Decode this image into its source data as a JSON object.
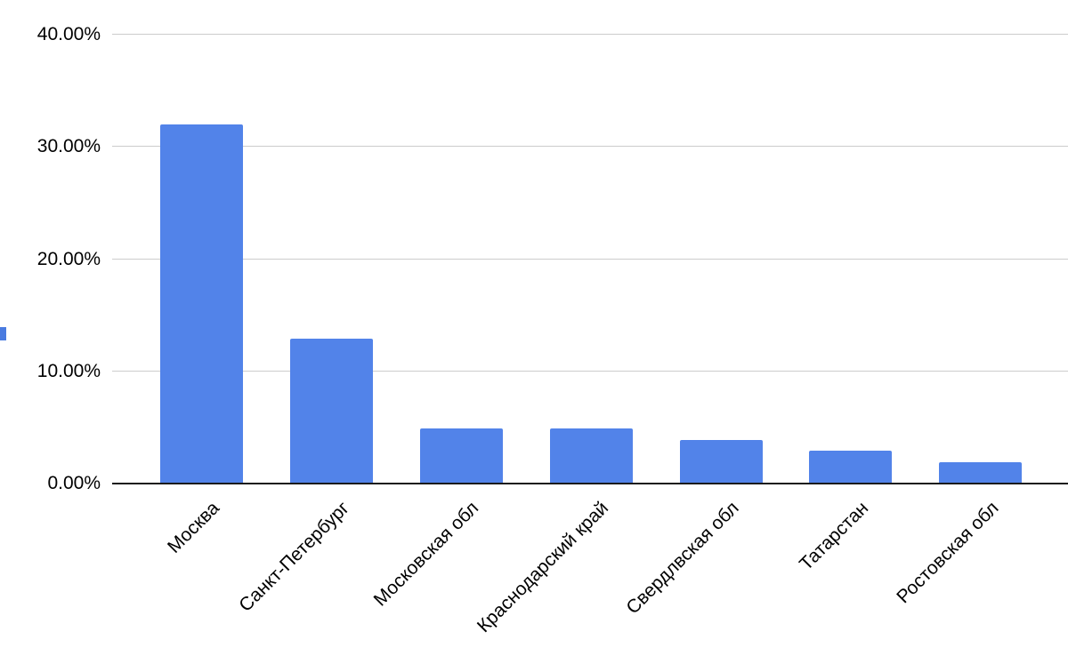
{
  "chart_data": {
    "type": "bar",
    "title": "",
    "xlabel": "",
    "ylabel": "",
    "categories": [
      "Москва",
      "Санкт-Петербург",
      "Московская обл",
      "Краснодарский край",
      "Свердлвская обл",
      "Татарстан",
      "Ростовская обл"
    ],
    "values": [
      32.0,
      12.9,
      4.9,
      4.9,
      3.9,
      2.9,
      1.9
    ],
    "ylim": [
      0,
      40
    ],
    "y_ticks": [
      {
        "label": "0.00%",
        "value": 0
      },
      {
        "label": "10.00%",
        "value": 10
      },
      {
        "label": "20.00%",
        "value": 20
      },
      {
        "label": "30.00%",
        "value": 30
      },
      {
        "label": "40.00%",
        "value": 40
      }
    ],
    "grid": true,
    "legend_position": "left-clipped",
    "colors": {
      "bar": "#5283E9",
      "legend_swatch": "#4a7be0",
      "gridline": "#cccccc",
      "axis_line": "#1a1a1a",
      "text": "#000000",
      "background": "#ffffff"
    }
  }
}
